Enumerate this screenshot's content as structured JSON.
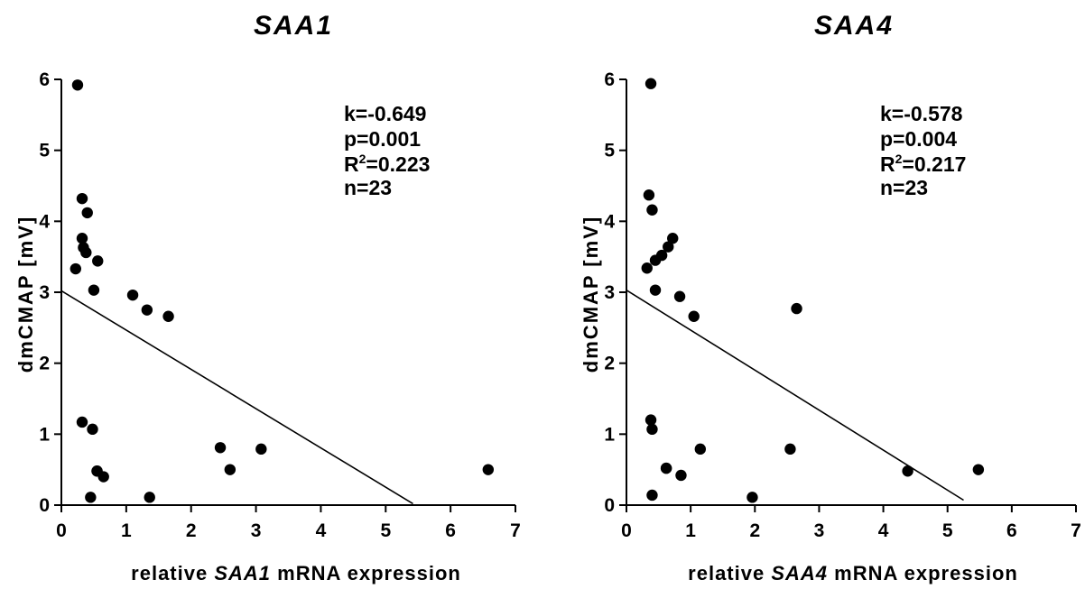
{
  "chart_data": [
    {
      "type": "scatter",
      "title": "SAA1",
      "ylabel": "dmCMAP [mV]",
      "xlabel_parts": [
        "relative ",
        "SAA1",
        " mRNA expression"
      ],
      "xlim": [
        0,
        7
      ],
      "ylim": [
        0,
        6
      ],
      "xticks": [
        "0",
        "1",
        "2",
        "3",
        "4",
        "5",
        "6",
        "7"
      ],
      "yticks": [
        "0",
        "1",
        "2",
        "3",
        "4",
        "5",
        "6"
      ],
      "stats": {
        "k": "k=-0.649",
        "p": "p=0.001",
        "r2_prefix": "R",
        "r2_sup": "2",
        "r2_value": "=0.223",
        "n": "n=23"
      },
      "points": [
        [
          0.25,
          5.92
        ],
        [
          0.32,
          4.32
        ],
        [
          0.4,
          4.12
        ],
        [
          0.32,
          3.76
        ],
        [
          0.34,
          3.63
        ],
        [
          0.38,
          3.56
        ],
        [
          0.22,
          3.33
        ],
        [
          0.56,
          3.44
        ],
        [
          0.5,
          3.03
        ],
        [
          1.1,
          2.96
        ],
        [
          1.32,
          2.75
        ],
        [
          1.65,
          2.66
        ],
        [
          0.32,
          1.17
        ],
        [
          0.48,
          1.07
        ],
        [
          2.45,
          0.81
        ],
        [
          3.08,
          0.79
        ],
        [
          0.55,
          0.48
        ],
        [
          0.65,
          0.4
        ],
        [
          2.6,
          0.5
        ],
        [
          0.45,
          0.11
        ],
        [
          1.36,
          0.11
        ],
        [
          6.58,
          0.5
        ],
        [
          0.55,
          0.48
        ]
      ],
      "fit": {
        "x1": 0.0,
        "y1": 3.02,
        "x2": 5.42,
        "y2": 0.02
      }
    },
    {
      "type": "scatter",
      "title": "SAA4",
      "ylabel": "dmCMAP [mV]",
      "xlabel_parts": [
        "relative ",
        "SAA4",
        " mRNA expression"
      ],
      "xlim": [
        0,
        7
      ],
      "ylim": [
        0,
        6
      ],
      "xticks": [
        "0",
        "1",
        "2",
        "3",
        "4",
        "5",
        "6",
        "7"
      ],
      "yticks": [
        "0",
        "1",
        "2",
        "3",
        "4",
        "5",
        "6"
      ],
      "stats": {
        "k": "k=-0.578",
        "p": "p=0.004",
        "r2_prefix": "R",
        "r2_sup": "2",
        "r2_value": "=0.217",
        "n": "n=23"
      },
      "points": [
        [
          0.38,
          5.94
        ],
        [
          0.35,
          4.37
        ],
        [
          0.4,
          4.16
        ],
        [
          0.72,
          3.76
        ],
        [
          0.65,
          3.64
        ],
        [
          0.55,
          3.52
        ],
        [
          0.45,
          3.45
        ],
        [
          0.32,
          3.34
        ],
        [
          0.45,
          3.03
        ],
        [
          0.83,
          2.94
        ],
        [
          1.05,
          2.66
        ],
        [
          2.65,
          2.77
        ],
        [
          0.38,
          1.2
        ],
        [
          0.4,
          1.07
        ],
        [
          1.15,
          0.79
        ],
        [
          2.55,
          0.79
        ],
        [
          0.62,
          0.52
        ],
        [
          0.85,
          0.42
        ],
        [
          4.38,
          0.48
        ],
        [
          5.48,
          0.5
        ],
        [
          0.4,
          0.14
        ],
        [
          1.96,
          0.11
        ],
        [
          0.62,
          0.52
        ]
      ],
      "fit": {
        "x1": 0.0,
        "y1": 3.03,
        "x2": 5.25,
        "y2": 0.07
      }
    }
  ]
}
